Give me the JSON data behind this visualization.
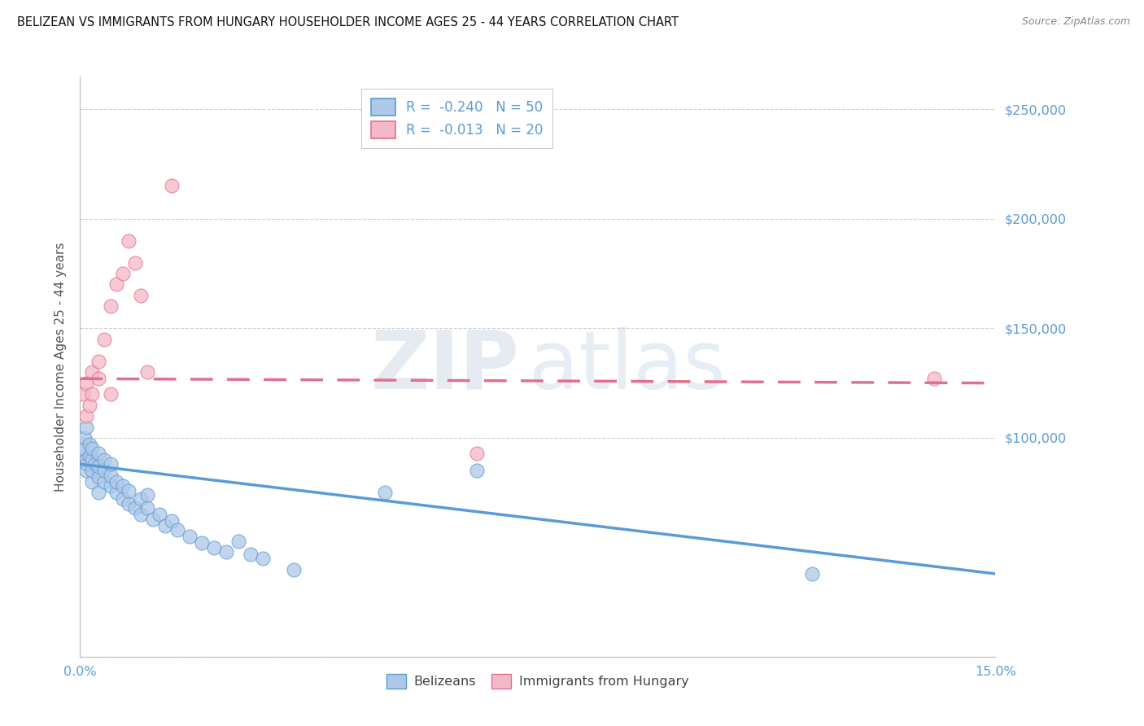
{
  "title": "BELIZEAN VS IMMIGRANTS FROM HUNGARY HOUSEHOLDER INCOME AGES 25 - 44 YEARS CORRELATION CHART",
  "source": "Source: ZipAtlas.com",
  "ylabel": "Householder Income Ages 25 - 44 years",
  "xlim": [
    0.0,
    0.15
  ],
  "ylim": [
    0,
    265000
  ],
  "ytick_positions": [
    100000,
    150000,
    200000,
    250000
  ],
  "ytick_labels": [
    "$100,000",
    "$150,000",
    "$200,000",
    "$250,000"
  ],
  "xtick_positions": [
    0.0,
    0.15
  ],
  "xtick_labels": [
    "0.0%",
    "15.0%"
  ],
  "watermark_zip": "ZIP",
  "watermark_atlas": "atlas",
  "legend_r1": "-0.240",
  "legend_n1": "50",
  "legend_r2": "-0.013",
  "legend_n2": "20",
  "blue_face": "#aec8e8",
  "blue_edge": "#5b9bd5",
  "pink_face": "#f5b8c8",
  "pink_edge": "#e07090",
  "blue_line": "#5b9bd5",
  "pink_line": "#e07090",
  "grid_color": "#d0d0d0",
  "tick_label_color": "#5b9bd5",
  "ylabel_color": "#555555",
  "title_color": "#111111",
  "source_color": "#888888",
  "blue_trend_x0": 0.0,
  "blue_trend_y0": 88000,
  "blue_trend_x1": 0.15,
  "blue_trend_y1": 38000,
  "pink_trend_x0": 0.0,
  "pink_trend_y0": 127000,
  "pink_trend_x1": 0.15,
  "pink_trend_y1": 125000,
  "blue_x": [
    0.0005,
    0.0008,
    0.001,
    0.001,
    0.001,
    0.0012,
    0.0015,
    0.0015,
    0.002,
    0.002,
    0.002,
    0.002,
    0.0025,
    0.003,
    0.003,
    0.003,
    0.003,
    0.004,
    0.004,
    0.004,
    0.005,
    0.005,
    0.005,
    0.006,
    0.006,
    0.007,
    0.007,
    0.008,
    0.008,
    0.009,
    0.01,
    0.01,
    0.011,
    0.011,
    0.012,
    0.013,
    0.014,
    0.015,
    0.016,
    0.018,
    0.02,
    0.022,
    0.024,
    0.026,
    0.028,
    0.03,
    0.035,
    0.05,
    0.065,
    0.12
  ],
  "blue_y": [
    95000,
    100000,
    85000,
    90000,
    105000,
    88000,
    92000,
    97000,
    80000,
    85000,
    90000,
    95000,
    88000,
    75000,
    82000,
    87000,
    93000,
    80000,
    85000,
    90000,
    78000,
    83000,
    88000,
    75000,
    80000,
    72000,
    78000,
    70000,
    76000,
    68000,
    65000,
    72000,
    68000,
    74000,
    63000,
    65000,
    60000,
    62000,
    58000,
    55000,
    52000,
    50000,
    48000,
    53000,
    47000,
    45000,
    40000,
    75000,
    85000,
    38000
  ],
  "pink_x": [
    0.0005,
    0.001,
    0.001,
    0.0015,
    0.002,
    0.002,
    0.003,
    0.003,
    0.004,
    0.005,
    0.005,
    0.006,
    0.007,
    0.008,
    0.009,
    0.01,
    0.011,
    0.015,
    0.065,
    0.14
  ],
  "pink_y": [
    120000,
    110000,
    125000,
    115000,
    130000,
    120000,
    127000,
    135000,
    145000,
    160000,
    120000,
    170000,
    175000,
    190000,
    180000,
    165000,
    130000,
    215000,
    93000,
    127000
  ]
}
